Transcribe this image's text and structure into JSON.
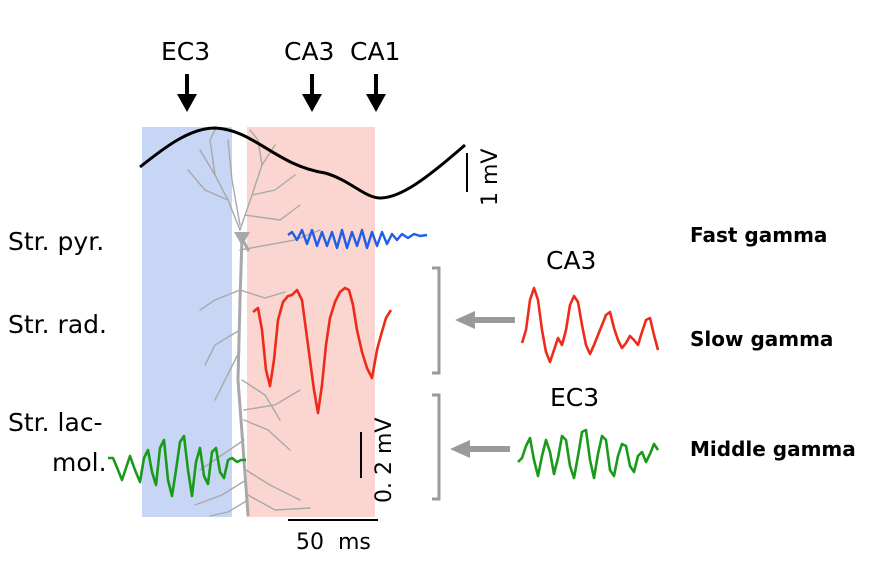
{
  "regions": {
    "ec3": "EC3",
    "ca3": "CA3",
    "ca1": "CA1"
  },
  "layers": {
    "pyr": "Str. pyr.",
    "rad": "Str. rad.",
    "lacmol_1": "Str. lac-",
    "lacmol_2": "mol."
  },
  "gamma_bands": {
    "fast": "Fast gamma",
    "slow": "Slow gamma",
    "middle": "Middle gamma"
  },
  "sources": {
    "ca3": "CA3",
    "ec3": "EC3"
  },
  "scale_bars": {
    "theta_voltage": "1 mV",
    "gamma_voltage": "0. 2 mV",
    "time": "50  ms"
  },
  "colors": {
    "ec3_zone": "#c8d6f5",
    "ca3_zone": "#fbd6d0",
    "theta": "#000000",
    "fast_gamma": "#1f5ee8",
    "slow_gamma": "#ee2a1a",
    "middle_gamma": "#1a9a1a",
    "neuron": "#a8a8a8",
    "bracket": "#9a9a9a"
  },
  "icons": [
    "arrow-down-icon",
    "arrow-left-icon"
  ]
}
